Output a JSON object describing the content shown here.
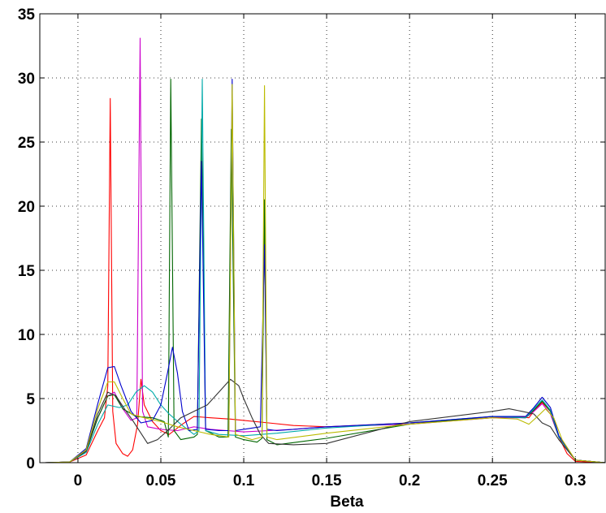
{
  "chart_data": {
    "type": "line",
    "title": "",
    "xlabel": "Beta",
    "ylabel": "",
    "xlim": [
      -0.023,
      0.318
    ],
    "ylim": [
      0,
      35
    ],
    "grid": true,
    "legend": "none",
    "x_ticks": [
      0,
      0.05,
      0.1,
      0.15,
      0.2,
      0.25,
      0.3
    ],
    "x_tick_labels": [
      "0",
      "0.05",
      "0.1",
      "0.15",
      "0.2",
      "0.25",
      "0.3"
    ],
    "y_ticks": [
      0,
      5,
      10,
      15,
      20,
      25,
      30,
      35
    ],
    "y_tick_labels": [
      "0",
      "5",
      "10",
      "15",
      "20",
      "25",
      "30",
      "35"
    ],
    "series": [
      {
        "color": "#ff0000",
        "points": [
          [
            -0.02,
            0
          ],
          [
            -0.005,
            0.05
          ],
          [
            0.005,
            0.6
          ],
          [
            0.012,
            2.5
          ],
          [
            0.016,
            3.5
          ],
          [
            0.018,
            6
          ],
          [
            0.0195,
            28.4
          ],
          [
            0.021,
            4
          ],
          [
            0.023,
            1.5
          ],
          [
            0.027,
            0.7
          ],
          [
            0.03,
            0.5
          ],
          [
            0.033,
            1
          ],
          [
            0.036,
            3
          ],
          [
            0.038,
            6.5
          ],
          [
            0.04,
            4.5
          ],
          [
            0.045,
            3.2
          ],
          [
            0.05,
            2.5
          ],
          [
            0.055,
            2.2
          ],
          [
            0.058,
            2.5
          ],
          [
            0.063,
            3
          ],
          [
            0.07,
            3.6
          ],
          [
            0.08,
            3.5
          ],
          [
            0.092,
            3.4
          ],
          [
            0.1,
            3.3
          ],
          [
            0.115,
            3.1
          ],
          [
            0.13,
            2.9
          ],
          [
            0.15,
            2.8
          ],
          [
            0.2,
            3.1
          ],
          [
            0.25,
            3.5
          ],
          [
            0.265,
            3.6
          ],
          [
            0.272,
            3.5
          ],
          [
            0.276,
            4.2
          ],
          [
            0.28,
            4.7
          ],
          [
            0.285,
            4
          ],
          [
            0.29,
            2
          ],
          [
            0.295,
            0.7
          ],
          [
            0.3,
            0.1
          ],
          [
            0.32,
            0
          ]
        ]
      },
      {
        "color": "#cc00cc",
        "points": [
          [
            -0.02,
            0
          ],
          [
            -0.005,
            0.05
          ],
          [
            0.005,
            0.9
          ],
          [
            0.012,
            3.5
          ],
          [
            0.018,
            5.2
          ],
          [
            0.022,
            5.5
          ],
          [
            0.027,
            4.2
          ],
          [
            0.032,
            3.3
          ],
          [
            0.0355,
            3.5
          ],
          [
            0.0375,
            33.1
          ],
          [
            0.039,
            4
          ],
          [
            0.042,
            2.8
          ],
          [
            0.05,
            2.6
          ],
          [
            0.06,
            2.5
          ],
          [
            0.07,
            2.8
          ],
          [
            0.08,
            2.6
          ],
          [
            0.09,
            2.5
          ],
          [
            0.1,
            2.4
          ],
          [
            0.115,
            2.5
          ],
          [
            0.13,
            2.6
          ],
          [
            0.15,
            2.8
          ],
          [
            0.2,
            3
          ],
          [
            0.25,
            3.5
          ],
          [
            0.27,
            3.5
          ],
          [
            0.275,
            4
          ],
          [
            0.28,
            4.6
          ],
          [
            0.285,
            3.8
          ],
          [
            0.29,
            2
          ],
          [
            0.3,
            0.2
          ],
          [
            0.32,
            0
          ]
        ]
      },
      {
        "color": "#006600",
        "points": [
          [
            -0.02,
            0
          ],
          [
            -0.005,
            0.05
          ],
          [
            0.005,
            0.9
          ],
          [
            0.012,
            3.5
          ],
          [
            0.018,
            5.2
          ],
          [
            0.022,
            5.3
          ],
          [
            0.027,
            4.2
          ],
          [
            0.035,
            3.6
          ],
          [
            0.045,
            3.5
          ],
          [
            0.052,
            3.2
          ],
          [
            0.0545,
            2
          ],
          [
            0.056,
            29.9
          ],
          [
            0.058,
            2.5
          ],
          [
            0.062,
            1.8
          ],
          [
            0.07,
            2
          ],
          [
            0.072,
            2.2
          ],
          [
            0.0745,
            26.8
          ],
          [
            0.077,
            2.5
          ],
          [
            0.085,
            2
          ],
          [
            0.0905,
            2
          ],
          [
            0.0925,
            26
          ],
          [
            0.095,
            2
          ],
          [
            0.1,
            1.8
          ],
          [
            0.108,
            1.6
          ],
          [
            0.111,
            1.9
          ],
          [
            0.1125,
            20.5
          ],
          [
            0.114,
            1.8
          ],
          [
            0.12,
            1.4
          ],
          [
            0.15,
            1.9
          ],
          [
            0.2,
            3
          ],
          [
            0.25,
            3.6
          ],
          [
            0.27,
            3.5
          ],
          [
            0.275,
            4.1
          ],
          [
            0.28,
            4.8
          ],
          [
            0.285,
            4
          ],
          [
            0.29,
            2
          ],
          [
            0.3,
            0.2
          ],
          [
            0.32,
            0
          ]
        ]
      },
      {
        "color": "#00aaaa",
        "points": [
          [
            -0.02,
            0
          ],
          [
            -0.005,
            0.05
          ],
          [
            0.005,
            0.8
          ],
          [
            0.012,
            3
          ],
          [
            0.018,
            4.5
          ],
          [
            0.025,
            4.3
          ],
          [
            0.03,
            4.5
          ],
          [
            0.035,
            5.5
          ],
          [
            0.04,
            6
          ],
          [
            0.045,
            5.5
          ],
          [
            0.05,
            4.5
          ],
          [
            0.055,
            3.8
          ],
          [
            0.062,
            3
          ],
          [
            0.07,
            2.2
          ],
          [
            0.073,
            2.5
          ],
          [
            0.075,
            29.9
          ],
          [
            0.077,
            2.5
          ],
          [
            0.085,
            2.2
          ],
          [
            0.1,
            2.1
          ],
          [
            0.12,
            2.3
          ],
          [
            0.15,
            2.7
          ],
          [
            0.2,
            3.1
          ],
          [
            0.25,
            3.6
          ],
          [
            0.27,
            3.5
          ],
          [
            0.275,
            4.2
          ],
          [
            0.28,
            4.9
          ],
          [
            0.285,
            4.1
          ],
          [
            0.29,
            2
          ],
          [
            0.3,
            0.2
          ],
          [
            0.32,
            0
          ]
        ]
      },
      {
        "color": "#0000cc",
        "points": [
          [
            -0.02,
            0
          ],
          [
            -0.005,
            0.05
          ],
          [
            0.005,
            1.1
          ],
          [
            0.012,
            4.6
          ],
          [
            0.018,
            7.4
          ],
          [
            0.022,
            7.5
          ],
          [
            0.026,
            6
          ],
          [
            0.032,
            4
          ],
          [
            0.038,
            3.1
          ],
          [
            0.045,
            3.3
          ],
          [
            0.05,
            4.5
          ],
          [
            0.054,
            7
          ],
          [
            0.057,
            9
          ],
          [
            0.06,
            7
          ],
          [
            0.063,
            4
          ],
          [
            0.067,
            2.5
          ],
          [
            0.072,
            2.6
          ],
          [
            0.0745,
            23.5
          ],
          [
            0.077,
            2.6
          ],
          [
            0.085,
            2.5
          ],
          [
            0.091,
            2.5
          ],
          [
            0.093,
            29.9
          ],
          [
            0.095,
            2.5
          ],
          [
            0.1,
            2.6
          ],
          [
            0.11,
            2.8
          ],
          [
            0.1125,
            17
          ],
          [
            0.114,
            2.6
          ],
          [
            0.12,
            2.5
          ],
          [
            0.15,
            2.8
          ],
          [
            0.2,
            3.1
          ],
          [
            0.25,
            3.6
          ],
          [
            0.27,
            3.6
          ],
          [
            0.275,
            4.3
          ],
          [
            0.28,
            5.1
          ],
          [
            0.285,
            4.3
          ],
          [
            0.29,
            2.1
          ],
          [
            0.3,
            0.2
          ],
          [
            0.32,
            0
          ]
        ]
      },
      {
        "color": "#333333",
        "points": [
          [
            -0.02,
            0
          ],
          [
            -0.005,
            0.05
          ],
          [
            0.005,
            0.9
          ],
          [
            0.012,
            3.8
          ],
          [
            0.018,
            5.5
          ],
          [
            0.023,
            5.2
          ],
          [
            0.028,
            4.2
          ],
          [
            0.033,
            3.3
          ],
          [
            0.038,
            2.3
          ],
          [
            0.042,
            1.5
          ],
          [
            0.048,
            1.8
          ],
          [
            0.055,
            2.6
          ],
          [
            0.062,
            3.5
          ],
          [
            0.07,
            4
          ],
          [
            0.078,
            4.5
          ],
          [
            0.085,
            5.5
          ],
          [
            0.092,
            6.5
          ],
          [
            0.097,
            6
          ],
          [
            0.1,
            5
          ],
          [
            0.105,
            3.5
          ],
          [
            0.11,
            2.2
          ],
          [
            0.115,
            1.5
          ],
          [
            0.13,
            1.4
          ],
          [
            0.15,
            1.5
          ],
          [
            0.2,
            3.2
          ],
          [
            0.25,
            4
          ],
          [
            0.26,
            4.2
          ],
          [
            0.268,
            4
          ],
          [
            0.275,
            3.8
          ],
          [
            0.28,
            3.1
          ],
          [
            0.285,
            2.8
          ],
          [
            0.29,
            1.8
          ],
          [
            0.3,
            0.2
          ],
          [
            0.32,
            0
          ]
        ]
      },
      {
        "color": "#bbbb00",
        "points": [
          [
            -0.02,
            0
          ],
          [
            -0.005,
            0.05
          ],
          [
            0.005,
            1
          ],
          [
            0.012,
            4.2
          ],
          [
            0.018,
            6.3
          ],
          [
            0.022,
            6.3
          ],
          [
            0.027,
            5
          ],
          [
            0.032,
            3.8
          ],
          [
            0.04,
            3.5
          ],
          [
            0.05,
            3.2
          ],
          [
            0.06,
            2.8
          ],
          [
            0.07,
            2.5
          ],
          [
            0.08,
            2.2
          ],
          [
            0.091,
            2
          ],
          [
            0.093,
            29.5
          ],
          [
            0.095,
            2.2
          ],
          [
            0.105,
            1.8
          ],
          [
            0.111,
            2
          ],
          [
            0.1125,
            29.4
          ],
          [
            0.114,
            2
          ],
          [
            0.12,
            1.8
          ],
          [
            0.15,
            2.3
          ],
          [
            0.2,
            3
          ],
          [
            0.25,
            3.5
          ],
          [
            0.265,
            3.4
          ],
          [
            0.272,
            3
          ],
          [
            0.278,
            3.7
          ],
          [
            0.282,
            4.2
          ],
          [
            0.287,
            3.5
          ],
          [
            0.292,
            1.8
          ],
          [
            0.3,
            0.2
          ],
          [
            0.32,
            0
          ]
        ]
      }
    ]
  }
}
